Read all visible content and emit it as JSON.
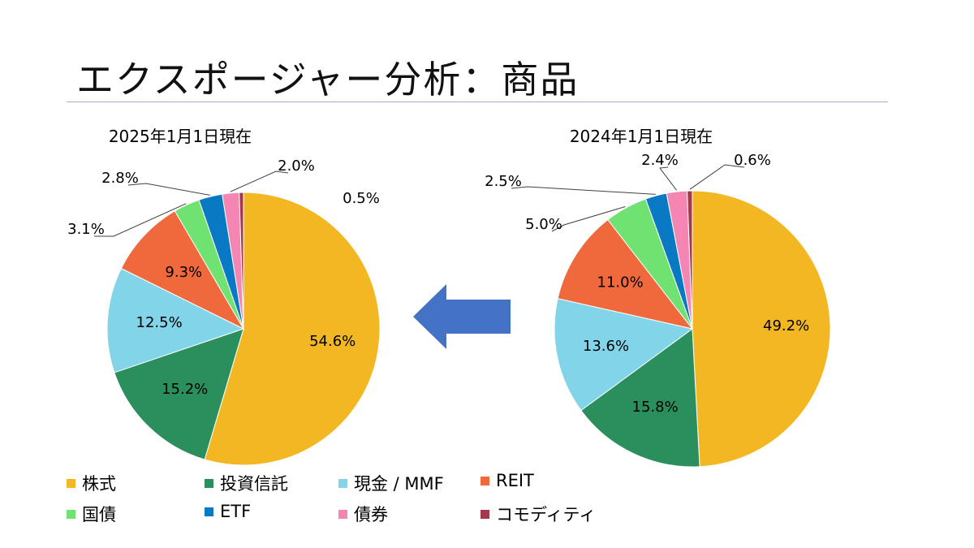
{
  "page": {
    "title": "エクスポージャー分析：商品"
  },
  "categories": [
    {
      "name": "株式",
      "color": "#F3B724"
    },
    {
      "name": "投資信託",
      "color": "#2A8F5C"
    },
    {
      "name": "現金 / MMF",
      "color": "#82D4E8"
    },
    {
      "name": "REIT",
      "color": "#F0693D"
    },
    {
      "name": "国債",
      "color": "#70E272"
    },
    {
      "name": "ETF",
      "color": "#0979C4"
    },
    {
      "name": "債券",
      "color": "#F585B2"
    },
    {
      "name": "コモディティ",
      "color": "#A33A4C"
    }
  ],
  "chart_data": [
    {
      "type": "pie",
      "title": "2025年1月1日現在",
      "categories": [
        "株式",
        "投資信託",
        "現金 / MMF",
        "REIT",
        "国債",
        "ETF",
        "債券",
        "コモディティ"
      ],
      "values": [
        54.6,
        15.2,
        12.5,
        9.3,
        3.1,
        2.8,
        2.0,
        0.5
      ],
      "labels": [
        "54.6%",
        "15.2%",
        "12.5%",
        "9.3%",
        "3.1%",
        "2.8%",
        "2.0%",
        "0.5%"
      ]
    },
    {
      "type": "pie",
      "title": "2024年1月1日現在",
      "categories": [
        "株式",
        "投資信託",
        "現金 / MMF",
        "REIT",
        "国債",
        "ETF",
        "債券",
        "コモディティ"
      ],
      "values": [
        49.2,
        15.8,
        13.6,
        11.0,
        5.0,
        2.5,
        2.4,
        0.6
      ],
      "labels": [
        "49.2%",
        "15.8%",
        "13.6%",
        "11.0%",
        "5.0%",
        "2.5%",
        "2.4%",
        "0.6%"
      ]
    }
  ],
  "arrow": {
    "direction": "left",
    "color": "#4472C4"
  }
}
